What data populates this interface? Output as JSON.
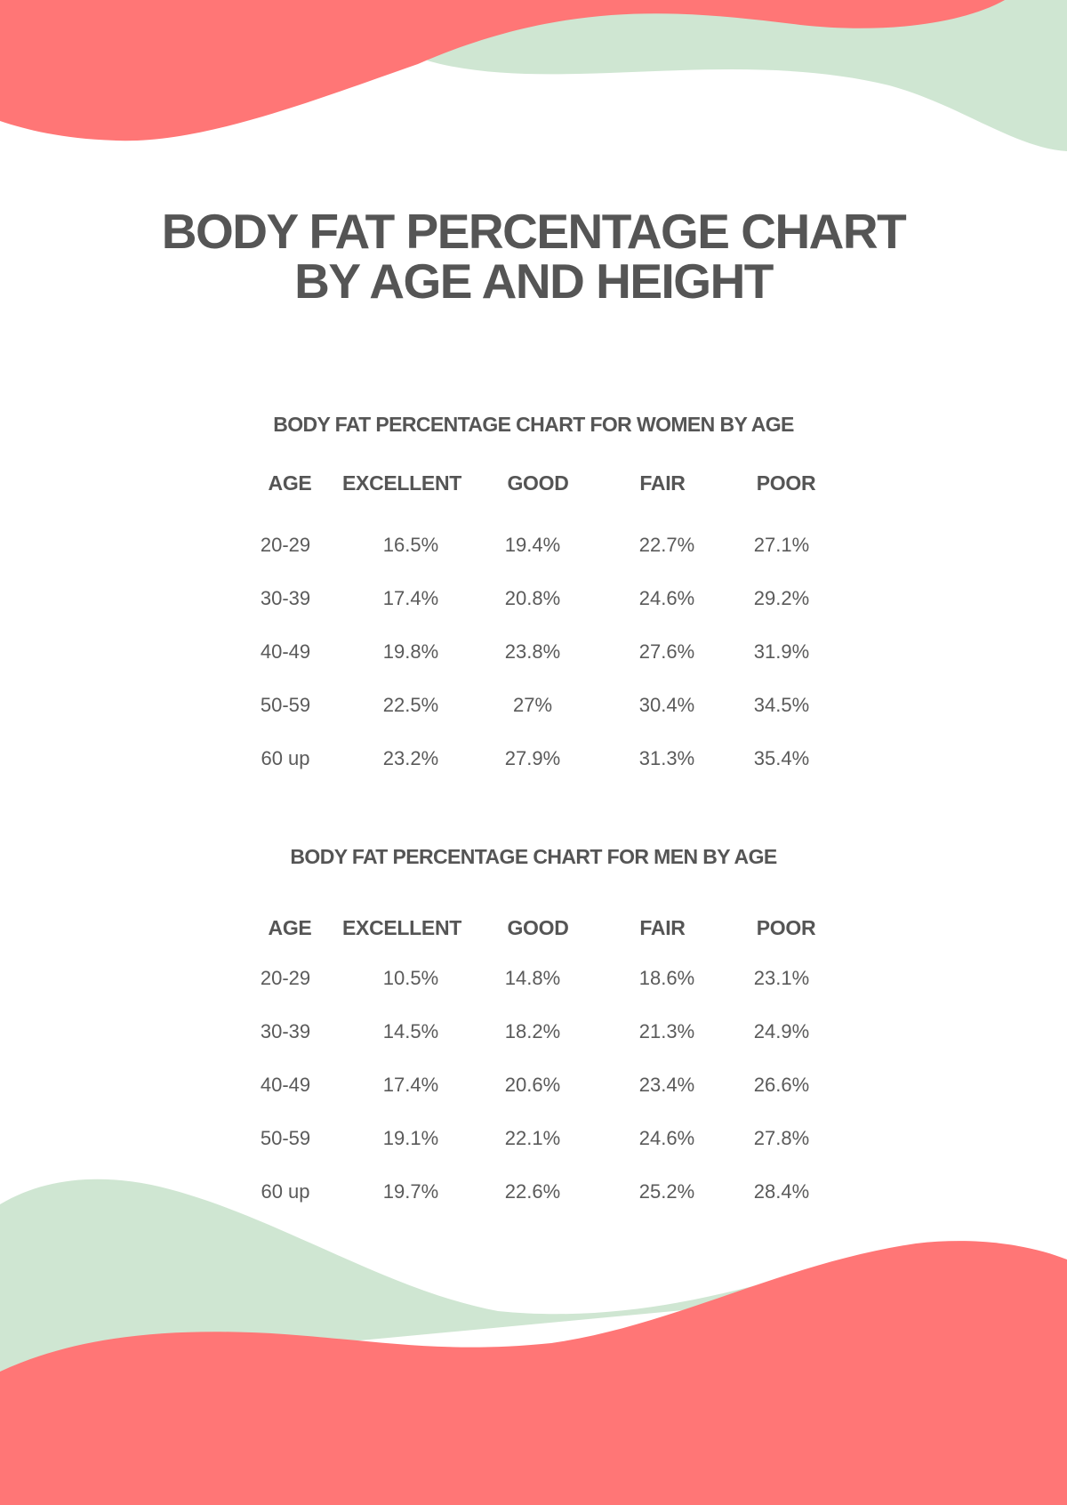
{
  "title": {
    "line1": "BODY FAT PERCENTAGE CHART",
    "line2": "BY AGE AND HEIGHT"
  },
  "colors": {
    "coral": "#ff7676",
    "mint": "#cfe6d2",
    "text": "#555555"
  },
  "tables": {
    "women": {
      "title": "BODY FAT PERCENTAGE CHART FOR WOMEN BY AGE",
      "headers": [
        "AGE",
        "EXCELLENT",
        "GOOD",
        "FAIR",
        "POOR"
      ],
      "rows": [
        [
          "20-29",
          "16.5%",
          "19.4%",
          "22.7%",
          "27.1%"
        ],
        [
          "30-39",
          "17.4%",
          "20.8%",
          "24.6%",
          "29.2%"
        ],
        [
          "40-49",
          "19.8%",
          "23.8%",
          "27.6%",
          "31.9%"
        ],
        [
          "50-59",
          "22.5%",
          "27%",
          "30.4%",
          "34.5%"
        ],
        [
          "60 up",
          "23.2%",
          "27.9%",
          "31.3%",
          "35.4%"
        ]
      ]
    },
    "men": {
      "title": "BODY FAT PERCENTAGE CHART FOR MEN BY AGE",
      "headers": [
        "AGE",
        "EXCELLENT",
        "GOOD",
        "FAIR",
        "POOR"
      ],
      "rows": [
        [
          "20-29",
          "10.5%",
          "14.8%",
          "18.6%",
          "23.1%"
        ],
        [
          "30-39",
          "14.5%",
          "18.2%",
          "21.3%",
          "24.9%"
        ],
        [
          "40-49",
          "17.4%",
          "20.6%",
          "23.4%",
          "26.6%"
        ],
        [
          "50-59",
          "19.1%",
          "22.1%",
          "24.6%",
          "27.8%"
        ],
        [
          "60 up",
          "19.7%",
          "22.6%",
          "25.2%",
          "28.4%"
        ]
      ]
    }
  }
}
